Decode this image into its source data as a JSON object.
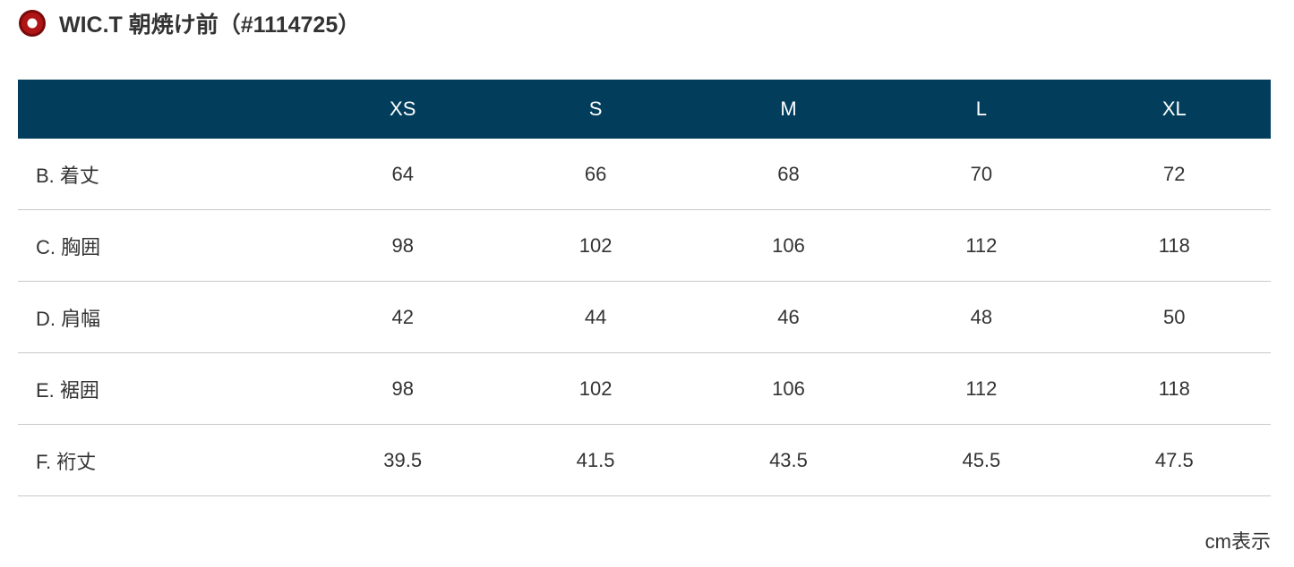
{
  "header": {
    "title": "WIC.T 朝焼け前（#1114725）"
  },
  "table": {
    "columns": [
      "XS",
      "S",
      "M",
      "L",
      "XL"
    ],
    "rows": [
      {
        "label": "B. 着丈",
        "values": [
          64,
          66,
          68,
          70,
          72
        ]
      },
      {
        "label": "C. 胸囲",
        "values": [
          98,
          102,
          106,
          112,
          118
        ]
      },
      {
        "label": "D. 肩幅",
        "values": [
          42,
          44,
          46,
          48,
          50
        ]
      },
      {
        "label": "E. 裾囲",
        "values": [
          98,
          102,
          106,
          112,
          118
        ]
      },
      {
        "label": "F. 裄丈",
        "values": [
          39.5,
          41.5,
          43.5,
          45.5,
          47.5
        ]
      }
    ]
  },
  "note": "cm表示"
}
